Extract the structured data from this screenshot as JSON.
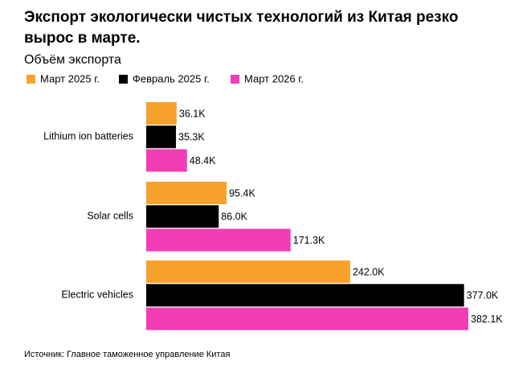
{
  "chart_data": {
    "type": "bar",
    "orientation": "horizontal",
    "title": [
      "Экспорт экологически чистых технологий из Китая резко",
      "вырос в марте."
    ],
    "subtitle": "Объём экспорта",
    "source": "Источник: Главное таможенное управление Китая",
    "categories": [
      "Lithium ion batteries",
      "Solar cells",
      "Electric vehicles"
    ],
    "series": [
      {
        "name": "Март 2025 г.",
        "color": "#f8a22e",
        "values": [
          36100,
          95400,
          242000
        ],
        "value_labels": [
          "36.1K",
          "95.4K",
          "242.0K"
        ]
      },
      {
        "name": "Февраль 2025 г.",
        "color": "#000000",
        "values": [
          35300,
          86000,
          377000
        ],
        "value_labels": [
          "35.3K",
          "86.0K",
          "377.0K"
        ]
      },
      {
        "name": "Март 2026 г.",
        "color": "#f23db5",
        "values": [
          48400,
          171300,
          382100
        ],
        "value_labels": [
          "48.4K",
          "171.3K",
          "382.1K"
        ]
      }
    ]
  }
}
